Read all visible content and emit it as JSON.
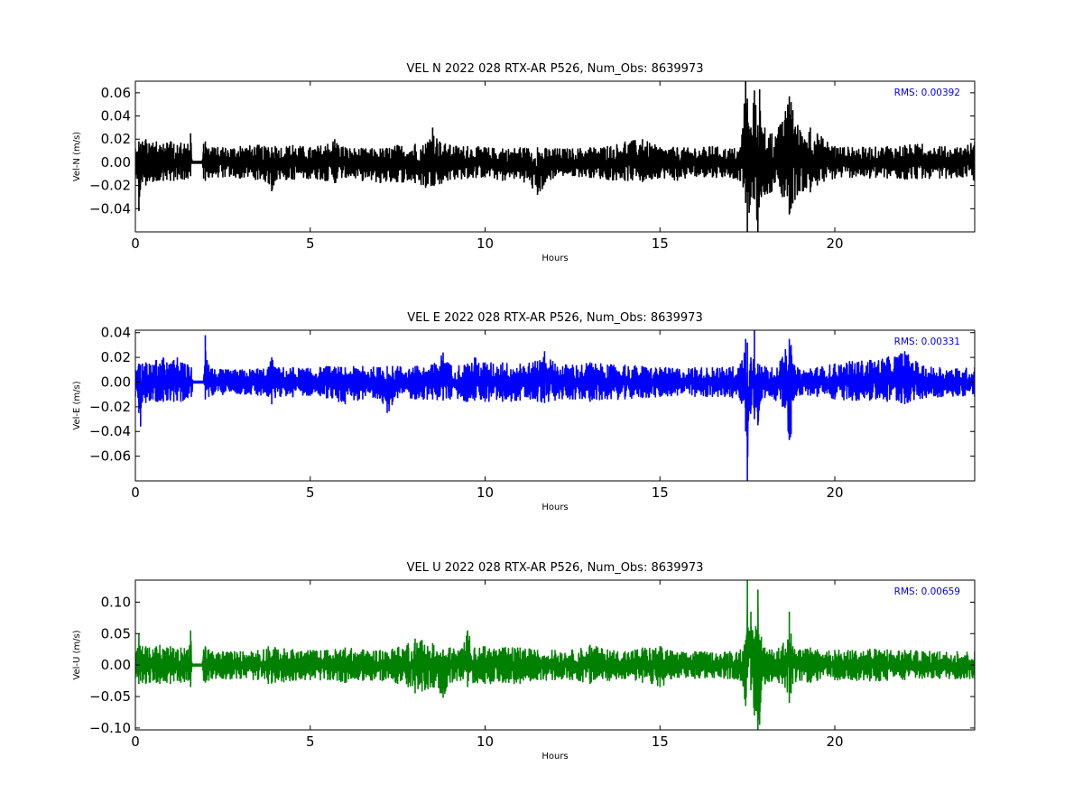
{
  "chart_data": [
    {
      "type": "line",
      "title": "VEL N 2022 028 RTX-AR  P526, Num_Obs: 8639973",
      "xlabel": "Hours",
      "ylabel": "Vel-N (m/s)",
      "xlim": [
        0,
        24
      ],
      "ylim": [
        -0.06,
        0.07
      ],
      "xticks": [
        0,
        5,
        10,
        15,
        20
      ],
      "yticks": [
        -0.04,
        -0.02,
        0.0,
        0.02,
        0.04,
        0.06
      ],
      "ytick_labels": [
        "−0.04",
        "−0.02",
        "0.00",
        "0.02",
        "0.04",
        "0.06"
      ],
      "grid": false,
      "color": "#000000",
      "annotation": "RMS:  0.00392",
      "annotation_color": "#0000ff",
      "series": [
        {
          "x": [
            0.0,
            0.1,
            0.15,
            0.2,
            0.3,
            0.4,
            0.5,
            0.6,
            0.7,
            0.8,
            0.9,
            1.0,
            1.1,
            1.2,
            1.3,
            1.4,
            1.5,
            1.58,
            1.62,
            1.65,
            1.7,
            1.8,
            1.9,
            1.95,
            2.0,
            2.1,
            2.2,
            2.5,
            3.0,
            3.5,
            3.8,
            3.9,
            4.0,
            4.5,
            5.0,
            5.5,
            5.7,
            6.0,
            6.5,
            7.0,
            7.5,
            8.0,
            8.3,
            8.5,
            8.7,
            9.0,
            9.5,
            10.0,
            10.5,
            11.0,
            11.5,
            12.0,
            12.5,
            13.0,
            13.5,
            14.0,
            14.5,
            15.0,
            15.5,
            16.0,
            16.5,
            17.0,
            17.3,
            17.45,
            17.5,
            17.6,
            17.7,
            17.8,
            17.85,
            17.9,
            18.0,
            18.2,
            18.5,
            18.7,
            18.75,
            18.8,
            19.0,
            19.3,
            19.5,
            20.0,
            20.5,
            21.0,
            21.5,
            22.0,
            22.5,
            23.0,
            23.5,
            24.0
          ],
          "y_max": [
            0.012,
            0.018,
            0.016,
            0.018,
            0.02,
            0.016,
            0.017,
            0.018,
            0.015,
            0.016,
            0.017,
            0.018,
            0.016,
            0.015,
            0.017,
            0.016,
            0.016,
            0.025,
            0.0,
            0.0,
            0.0,
            0.0,
            0.0,
            0.016,
            0.018,
            0.012,
            0.013,
            0.013,
            0.014,
            0.015,
            0.013,
            0.013,
            0.014,
            0.015,
            0.013,
            0.016,
            0.02,
            0.013,
            0.012,
            0.012,
            0.015,
            0.016,
            0.016,
            0.03,
            0.018,
            0.015,
            0.014,
            0.013,
            0.012,
            0.013,
            0.013,
            0.012,
            0.012,
            0.013,
            0.014,
            0.018,
            0.02,
            0.013,
            0.013,
            0.012,
            0.014,
            0.012,
            0.013,
            0.07,
            0.055,
            0.03,
            0.062,
            0.032,
            0.063,
            0.03,
            0.03,
            0.025,
            0.035,
            0.057,
            0.052,
            0.045,
            0.028,
            0.03,
            0.025,
            0.014,
            0.013,
            0.013,
            0.014,
            0.015,
            0.016,
            0.014,
            0.013,
            0.018
          ],
          "y_min": [
            -0.014,
            -0.042,
            -0.018,
            -0.017,
            -0.02,
            -0.016,
            -0.017,
            -0.016,
            -0.015,
            -0.016,
            -0.015,
            -0.016,
            -0.016,
            -0.015,
            -0.014,
            -0.015,
            -0.014,
            -0.012,
            0.0,
            0.0,
            0.0,
            0.0,
            0.0,
            -0.014,
            -0.016,
            -0.013,
            -0.013,
            -0.013,
            -0.014,
            -0.015,
            -0.018,
            -0.025,
            -0.016,
            -0.015,
            -0.014,
            -0.016,
            -0.018,
            -0.013,
            -0.016,
            -0.018,
            -0.017,
            -0.018,
            -0.022,
            -0.02,
            -0.019,
            -0.015,
            -0.014,
            -0.013,
            -0.016,
            -0.014,
            -0.028,
            -0.012,
            -0.012,
            -0.013,
            -0.015,
            -0.016,
            -0.017,
            -0.013,
            -0.016,
            -0.012,
            -0.013,
            -0.013,
            -0.016,
            -0.035,
            -0.06,
            -0.03,
            -0.032,
            -0.07,
            -0.028,
            -0.03,
            -0.028,
            -0.025,
            -0.03,
            -0.045,
            -0.04,
            -0.035,
            -0.025,
            -0.026,
            -0.02,
            -0.014,
            -0.013,
            -0.014,
            -0.014,
            -0.015,
            -0.014,
            -0.014,
            -0.013,
            -0.016
          ]
        }
      ]
    },
    {
      "type": "line",
      "title": "VEL E 2022 028 RTX-AR  P526, Num_Obs: 8639973",
      "xlabel": "Hours",
      "ylabel": "Vel-E (m/s)",
      "xlim": [
        0,
        24
      ],
      "ylim": [
        -0.08,
        0.042
      ],
      "xticks": [
        0,
        5,
        10,
        15,
        20
      ],
      "yticks": [
        -0.06,
        -0.04,
        -0.02,
        0.0,
        0.02,
        0.04
      ],
      "ytick_labels": [
        "−0.06",
        "−0.04",
        "−0.02",
        "0.00",
        "0.02",
        "0.04"
      ],
      "grid": false,
      "color": "#0000ff",
      "annotation": "RMS:  0.00331",
      "annotation_color": "#0000ff",
      "series": [
        {
          "x": [
            0.0,
            0.1,
            0.15,
            0.2,
            0.3,
            0.4,
            0.5,
            0.6,
            0.7,
            0.8,
            0.9,
            1.0,
            1.1,
            1.2,
            1.3,
            1.4,
            1.5,
            1.6,
            1.65,
            1.7,
            1.8,
            1.9,
            1.95,
            2.0,
            2.1,
            2.2,
            2.5,
            3.0,
            3.5,
            3.8,
            3.9,
            4.0,
            4.5,
            5.0,
            5.5,
            6.0,
            6.5,
            7.0,
            7.2,
            7.5,
            8.0,
            8.5,
            8.8,
            9.0,
            9.5,
            9.7,
            10.0,
            10.5,
            11.0,
            11.5,
            11.7,
            12.0,
            12.5,
            13.0,
            13.5,
            14.0,
            14.5,
            15.0,
            15.5,
            16.0,
            16.5,
            17.0,
            17.3,
            17.45,
            17.5,
            17.6,
            17.7,
            17.8,
            17.85,
            17.9,
            18.0,
            18.2,
            18.5,
            18.7,
            18.75,
            18.8,
            19.0,
            19.3,
            19.5,
            20.0,
            20.5,
            21.0,
            21.5,
            22.0,
            22.5,
            23.0,
            23.5,
            24.0
          ],
          "y_max": [
            0.01,
            0.015,
            0.014,
            0.015,
            0.016,
            0.015,
            0.014,
            0.018,
            0.015,
            0.02,
            0.016,
            0.015,
            0.018,
            0.02,
            0.016,
            0.015,
            0.014,
            0.012,
            0.0,
            0.0,
            0.0,
            0.0,
            0.0,
            0.038,
            0.014,
            0.011,
            0.01,
            0.01,
            0.011,
            0.012,
            0.02,
            0.012,
            0.012,
            0.011,
            0.013,
            0.012,
            0.013,
            0.012,
            0.013,
            0.013,
            0.013,
            0.014,
            0.024,
            0.014,
            0.015,
            0.02,
            0.016,
            0.016,
            0.015,
            0.017,
            0.025,
            0.015,
            0.014,
            0.016,
            0.014,
            0.014,
            0.013,
            0.012,
            0.011,
            0.012,
            0.012,
            0.012,
            0.015,
            0.035,
            0.032,
            0.02,
            0.042,
            0.015,
            0.014,
            0.012,
            0.013,
            0.012,
            0.02,
            0.035,
            0.03,
            0.015,
            0.01,
            0.011,
            0.012,
            0.015,
            0.017,
            0.018,
            0.02,
            0.025,
            0.013,
            0.012,
            0.011,
            0.012
          ],
          "y_min": [
            -0.012,
            -0.025,
            -0.036,
            -0.016,
            -0.017,
            -0.015,
            -0.014,
            -0.016,
            -0.015,
            -0.016,
            -0.015,
            -0.015,
            -0.016,
            -0.015,
            -0.016,
            -0.014,
            -0.013,
            -0.012,
            0.0,
            0.0,
            0.0,
            0.0,
            0.0,
            -0.014,
            -0.012,
            -0.011,
            -0.01,
            -0.01,
            -0.011,
            -0.012,
            -0.018,
            -0.013,
            -0.012,
            -0.011,
            -0.013,
            -0.018,
            -0.014,
            -0.013,
            -0.025,
            -0.013,
            -0.014,
            -0.014,
            -0.015,
            -0.014,
            -0.016,
            -0.015,
            -0.016,
            -0.016,
            -0.015,
            -0.016,
            -0.017,
            -0.015,
            -0.014,
            -0.016,
            -0.014,
            -0.014,
            -0.013,
            -0.012,
            -0.011,
            -0.012,
            -0.012,
            -0.012,
            -0.015,
            -0.04,
            -0.08,
            -0.022,
            -0.03,
            -0.035,
            -0.018,
            -0.014,
            -0.013,
            -0.012,
            -0.02,
            -0.047,
            -0.042,
            -0.015,
            -0.011,
            -0.011,
            -0.012,
            -0.014,
            -0.015,
            -0.015,
            -0.016,
            -0.018,
            -0.013,
            -0.012,
            -0.011,
            -0.012
          ]
        }
      ]
    },
    {
      "type": "line",
      "title": "VEL U 2022 028 RTX-AR  P526, Num_Obs: 8639973",
      "xlabel": "Hours",
      "ylabel": "Vel-U (m/s)",
      "xlim": [
        0,
        24
      ],
      "ylim": [
        -0.103,
        0.135
      ],
      "xticks": [
        0,
        5,
        10,
        15,
        20
      ],
      "yticks": [
        -0.1,
        -0.05,
        0.0,
        0.05,
        0.1
      ],
      "ytick_labels": [
        "−0.10",
        "−0.05",
        "0.00",
        "0.05",
        "0.10"
      ],
      "grid": false,
      "color": "#008000",
      "annotation": "RMS:  0.00659",
      "annotation_color": "#0000ff",
      "series": [
        {
          "x": [
            0.0,
            0.1,
            0.15,
            0.2,
            0.3,
            0.4,
            0.5,
            0.6,
            0.7,
            0.8,
            0.9,
            1.0,
            1.1,
            1.2,
            1.3,
            1.4,
            1.5,
            1.58,
            1.62,
            1.65,
            1.7,
            1.8,
            1.9,
            1.95,
            2.0,
            2.1,
            2.2,
            2.5,
            3.0,
            3.5,
            3.8,
            4.0,
            4.5,
            5.0,
            5.5,
            6.0,
            6.5,
            7.0,
            7.5,
            7.8,
            8.0,
            8.2,
            8.5,
            8.8,
            9.0,
            9.3,
            9.5,
            9.7,
            10.0,
            10.5,
            11.0,
            11.5,
            12.0,
            12.5,
            13.0,
            13.5,
            14.0,
            14.5,
            15.0,
            15.5,
            16.0,
            16.5,
            17.0,
            17.3,
            17.45,
            17.5,
            17.6,
            17.7,
            17.8,
            17.85,
            17.9,
            18.0,
            18.2,
            18.5,
            18.7,
            18.75,
            18.8,
            19.0,
            19.3,
            19.5,
            20.0,
            20.5,
            21.0,
            21.5,
            22.0,
            22.5,
            23.0,
            23.5,
            24.0
          ],
          "y_max": [
            0.02,
            0.05,
            0.025,
            0.03,
            0.03,
            0.028,
            0.025,
            0.03,
            0.032,
            0.025,
            0.028,
            0.03,
            0.026,
            0.025,
            0.028,
            0.027,
            0.025,
            0.055,
            0.0,
            0.0,
            0.0,
            0.0,
            0.0,
            0.025,
            0.03,
            0.025,
            0.022,
            0.022,
            0.022,
            0.024,
            0.03,
            0.028,
            0.025,
            0.024,
            0.024,
            0.028,
            0.025,
            0.024,
            0.028,
            0.035,
            0.042,
            0.04,
            0.035,
            0.025,
            0.028,
            0.025,
            0.055,
            0.028,
            0.03,
            0.028,
            0.028,
            0.024,
            0.024,
            0.024,
            0.032,
            0.025,
            0.022,
            0.028,
            0.03,
            0.02,
            0.022,
            0.02,
            0.022,
            0.025,
            0.04,
            0.135,
            0.085,
            0.03,
            0.12,
            0.04,
            0.045,
            0.028,
            0.025,
            0.03,
            0.085,
            0.05,
            0.03,
            0.025,
            0.028,
            0.025,
            0.024,
            0.024,
            0.026,
            0.025,
            0.024,
            0.022,
            0.022,
            0.022,
            0.022
          ],
          "y_min": [
            -0.02,
            -0.03,
            -0.025,
            -0.028,
            -0.03,
            -0.028,
            -0.025,
            -0.028,
            -0.03,
            -0.025,
            -0.028,
            -0.03,
            -0.026,
            -0.025,
            -0.028,
            -0.027,
            -0.025,
            -0.035,
            0.0,
            0.0,
            0.0,
            0.0,
            0.0,
            -0.025,
            -0.028,
            -0.025,
            -0.022,
            -0.022,
            -0.022,
            -0.024,
            -0.03,
            -0.028,
            -0.025,
            -0.024,
            -0.024,
            -0.028,
            -0.025,
            -0.024,
            -0.03,
            -0.035,
            -0.045,
            -0.042,
            -0.035,
            -0.052,
            -0.028,
            -0.025,
            -0.035,
            -0.028,
            -0.03,
            -0.028,
            -0.03,
            -0.024,
            -0.024,
            -0.024,
            -0.03,
            -0.025,
            -0.022,
            -0.028,
            -0.035,
            -0.02,
            -0.022,
            -0.02,
            -0.022,
            -0.025,
            -0.065,
            -0.02,
            -0.04,
            -0.08,
            -0.103,
            -0.095,
            -0.04,
            -0.03,
            -0.025,
            -0.03,
            -0.06,
            -0.045,
            -0.03,
            -0.025,
            -0.028,
            -0.025,
            -0.024,
            -0.024,
            -0.026,
            -0.025,
            -0.024,
            -0.022,
            -0.022,
            -0.022,
            -0.022
          ]
        }
      ]
    }
  ]
}
